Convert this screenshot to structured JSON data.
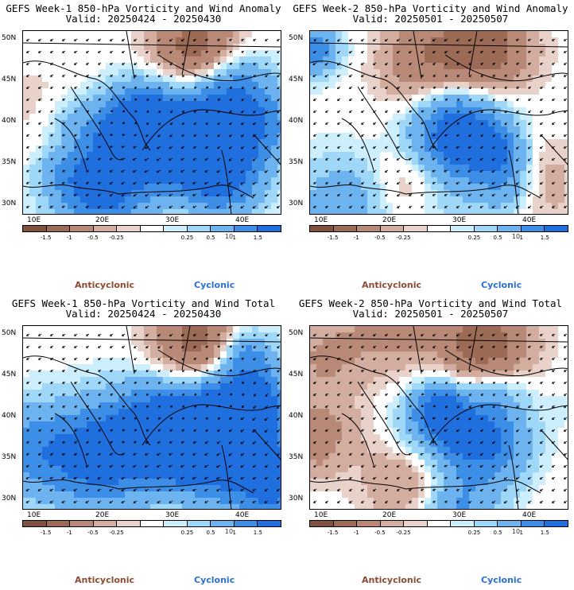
{
  "panels": [
    {
      "title_line1": "GEFS Week-1 850-hPa Vorticity and Wind Anomaly",
      "title_line2": "Valid: 20250424 - 20250430",
      "field": {
        "cyclonic_bias": 0.35,
        "seed": 11
      }
    },
    {
      "title_line1": "GEFS Week-2 850-hPa Vorticity and Wind Anomaly",
      "title_line2": "Valid: 20250501 - 20250507",
      "field": {
        "cyclonic_bias": 0.15,
        "seed": 23
      }
    },
    {
      "title_line1": "GEFS Week-1 850-hPa Vorticity and Wind Total",
      "title_line2": "Valid: 20250424 - 20250430",
      "field": {
        "cyclonic_bias": 0.25,
        "seed": 37
      }
    },
    {
      "title_line1": "GEFS Week-2 850-hPa Vorticity and Wind Total",
      "title_line2": "Valid: 20250501 - 20250507",
      "field": {
        "cyclonic_bias": 0.05,
        "seed": 53
      }
    }
  ],
  "lat_labels": [
    "50N",
    "45N",
    "40N",
    "35N",
    "30N"
  ],
  "lon_labels": [
    "10E",
    "20E",
    "30E",
    "40E"
  ],
  "colorbar": {
    "tick_labels": [
      "-1.5",
      "-1",
      "-0.5",
      "-0.25",
      "0.25",
      "0.5",
      "1",
      "1.5"
    ],
    "scale_label": "10",
    "colors": [
      "#7f5340",
      "#9c6b55",
      "#b88977",
      "#d3ada0",
      "#e8d2ca",
      "#ffffff",
      "#cdeefd",
      "#9ed7f8",
      "#6db3ef",
      "#3d8ee6",
      "#1f6fdf"
    ]
  },
  "legend": {
    "anticyclonic": "Anticyclonic",
    "cyclonic": "Cyclonic",
    "anticyclonic_color": "#8b4a32",
    "cyclonic_color": "#2a6fd6"
  }
}
